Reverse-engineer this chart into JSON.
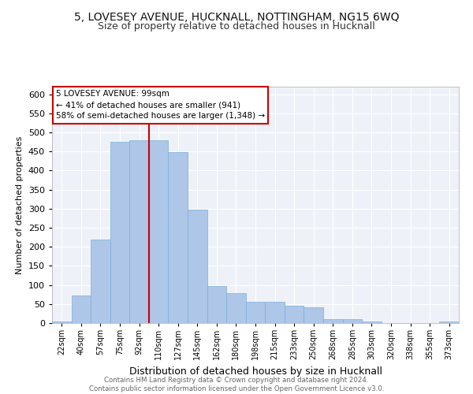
{
  "title1": "5, LOVESEY AVENUE, HUCKNALL, NOTTINGHAM, NG15 6WQ",
  "title2": "Size of property relative to detached houses in Hucknall",
  "xlabel": "Distribution of detached houses by size in Hucknall",
  "ylabel": "Number of detached properties",
  "categories": [
    "22sqm",
    "40sqm",
    "57sqm",
    "75sqm",
    "92sqm",
    "110sqm",
    "127sqm",
    "145sqm",
    "162sqm",
    "180sqm",
    "198sqm",
    "215sqm",
    "233sqm",
    "250sqm",
    "268sqm",
    "285sqm",
    "303sqm",
    "320sqm",
    "338sqm",
    "355sqm",
    "373sqm"
  ],
  "values": [
    5,
    72,
    219,
    475,
    480,
    480,
    448,
    297,
    97,
    79,
    55,
    55,
    46,
    42,
    11,
    11,
    5,
    0,
    0,
    0,
    5
  ],
  "bar_color": "#aec6e8",
  "bar_edge_color": "#7aafd4",
  "vline_x": 4.5,
  "vline_color": "#cc0000",
  "annotation_line1": "5 LOVESEY AVENUE: 99sqm",
  "annotation_line2": "← 41% of detached houses are smaller (941)",
  "annotation_line3": "58% of semi-detached houses are larger (1,348) →",
  "annotation_box_color": "#ffffff",
  "annotation_box_edge": "#cc0000",
  "ylim": [
    0,
    620
  ],
  "yticks": [
    0,
    50,
    100,
    150,
    200,
    250,
    300,
    350,
    400,
    450,
    500,
    550,
    600
  ],
  "footer": "Contains HM Land Registry data © Crown copyright and database right 2024.\nContains public sector information licensed under the Open Government Licence v3.0.",
  "bg_color": "#eef2f8",
  "title1_fontsize": 10,
  "title2_fontsize": 9,
  "ylabel_fontsize": 8,
  "xlabel_fontsize": 9
}
